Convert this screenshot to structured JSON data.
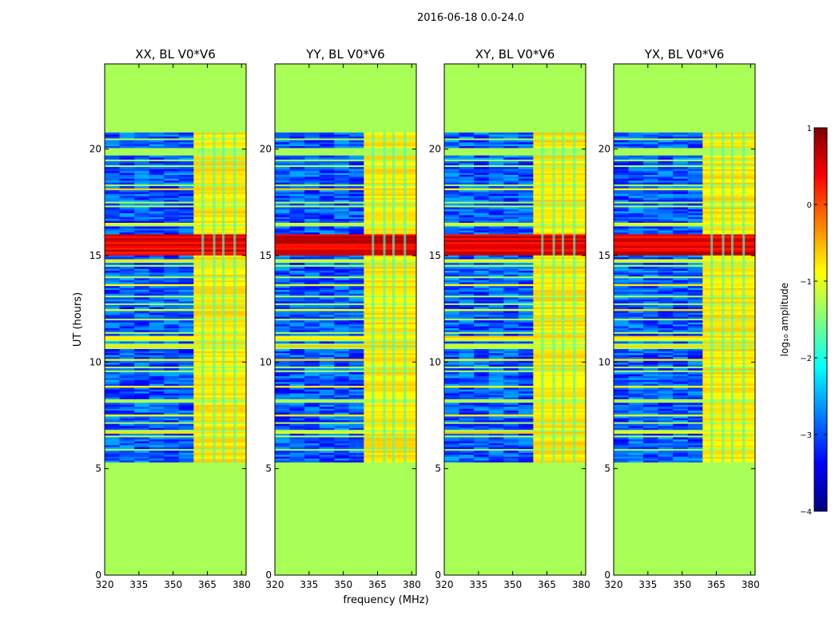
{
  "chart_data": {
    "type": "heatmap",
    "suptitle": "2016-06-18 0.0-24.0",
    "ylabel": "UT (hours)",
    "xlabel": "frequency (MHz)",
    "xlim": [
      320,
      382
    ],
    "ylim": [
      0,
      24
    ],
    "xticks": [
      "320",
      "335",
      "350",
      "365",
      "380"
    ],
    "yticks": [
      "0",
      "5",
      "10",
      "15",
      "20"
    ],
    "panels": [
      {
        "title": "XX, BL V0*V6",
        "band_start_mhz": 359
      },
      {
        "title": "YY, BL V0*V6",
        "band_start_mhz": 359
      },
      {
        "title": "XY, BL V0*V6",
        "band_start_mhz": 359
      },
      {
        "title": "YX, BL V0*V6",
        "band_start_mhz": 359
      }
    ],
    "observation_hours": [
      5.3,
      20.8
    ],
    "flagged_fill_log_amplitude": -1.3,
    "bright_event_hours": [
      15.0,
      16.0
    ],
    "strong_channels_mhz": [
      363,
      368,
      372,
      377
    ],
    "colorbar": {
      "label": "log₁₀ amplitude",
      "range": [
        -4,
        1
      ],
      "ticks": [
        "1",
        "0",
        "−1",
        "−2",
        "−3",
        "−4"
      ],
      "colormap": [
        "#00007f",
        "#0000ff",
        "#007fff",
        "#00ffff",
        "#7fff7f",
        "#ffff00",
        "#ff7f00",
        "#ff0000",
        "#7f0000"
      ]
    }
  }
}
